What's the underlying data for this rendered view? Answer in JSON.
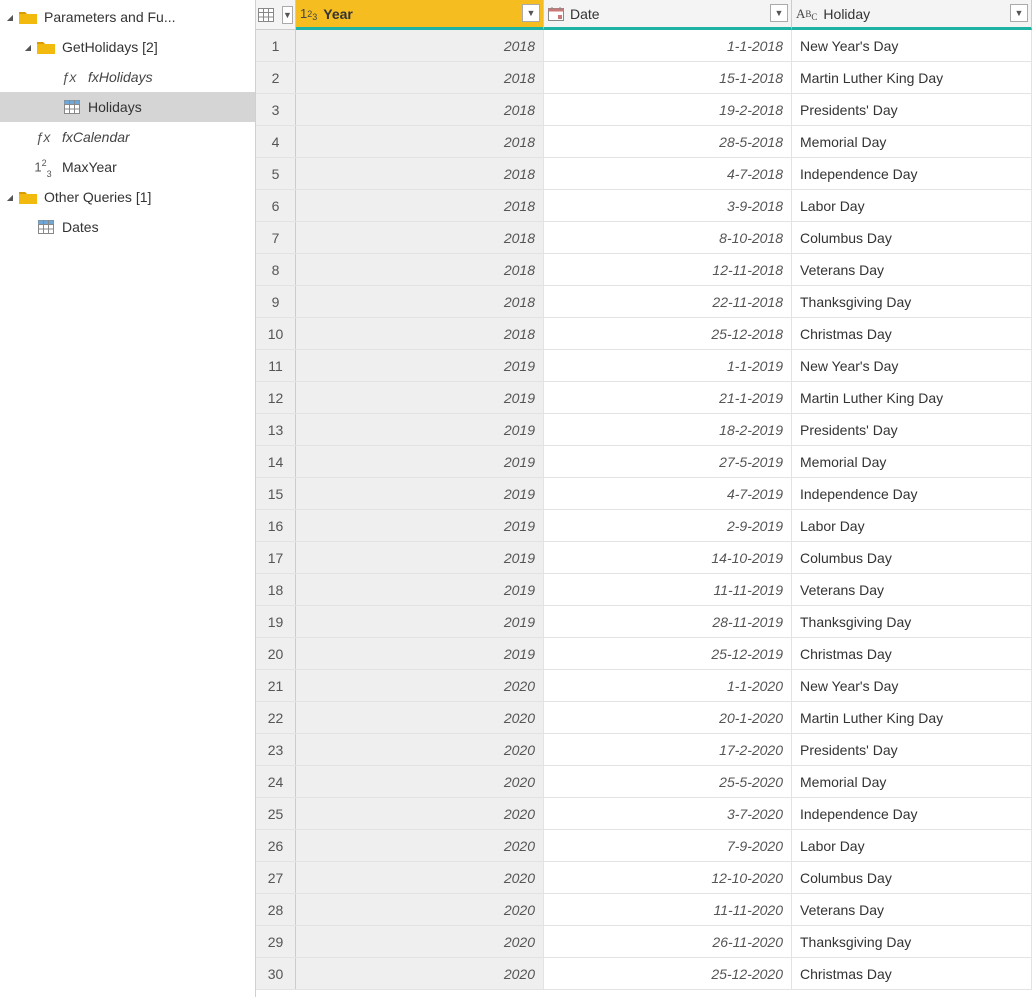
{
  "sidebar": {
    "items": [
      {
        "kind": "folder",
        "level": 0,
        "expanded": true,
        "label": "Parameters and Fu..."
      },
      {
        "kind": "folder",
        "level": 1,
        "expanded": true,
        "label": "GetHolidays [2]"
      },
      {
        "kind": "fx",
        "level": 2,
        "label": "fxHolidays"
      },
      {
        "kind": "table",
        "level": 2,
        "label": "Holidays",
        "selected": true
      },
      {
        "kind": "fx",
        "level": 1,
        "label": "fxCalendar"
      },
      {
        "kind": "number",
        "level": 1,
        "label": "MaxYear"
      },
      {
        "kind": "folder",
        "level": 0,
        "expanded": true,
        "label": "Other Queries [1]"
      },
      {
        "kind": "table",
        "level": 1,
        "label": "Dates"
      }
    ]
  },
  "grid": {
    "columns": [
      {
        "name": "Year",
        "type": "number",
        "selected": true
      },
      {
        "name": "Date",
        "type": "date",
        "selected": false
      },
      {
        "name": "Holiday",
        "type": "text",
        "selected": false
      }
    ],
    "rows": [
      {
        "n": "1",
        "year": "2018",
        "date": "1-1-2018",
        "holiday": "New Year's Day"
      },
      {
        "n": "2",
        "year": "2018",
        "date": "15-1-2018",
        "holiday": "Martin Luther King Day"
      },
      {
        "n": "3",
        "year": "2018",
        "date": "19-2-2018",
        "holiday": "Presidents' Day"
      },
      {
        "n": "4",
        "year": "2018",
        "date": "28-5-2018",
        "holiday": "Memorial Day"
      },
      {
        "n": "5",
        "year": "2018",
        "date": "4-7-2018",
        "holiday": "Independence Day"
      },
      {
        "n": "6",
        "year": "2018",
        "date": "3-9-2018",
        "holiday": "Labor Day"
      },
      {
        "n": "7",
        "year": "2018",
        "date": "8-10-2018",
        "holiday": "Columbus Day"
      },
      {
        "n": "8",
        "year": "2018",
        "date": "12-11-2018",
        "holiday": "Veterans Day"
      },
      {
        "n": "9",
        "year": "2018",
        "date": "22-11-2018",
        "holiday": "Thanksgiving Day"
      },
      {
        "n": "10",
        "year": "2018",
        "date": "25-12-2018",
        "holiday": "Christmas Day"
      },
      {
        "n": "11",
        "year": "2019",
        "date": "1-1-2019",
        "holiday": "New Year's Day"
      },
      {
        "n": "12",
        "year": "2019",
        "date": "21-1-2019",
        "holiday": "Martin Luther King Day"
      },
      {
        "n": "13",
        "year": "2019",
        "date": "18-2-2019",
        "holiday": "Presidents' Day"
      },
      {
        "n": "14",
        "year": "2019",
        "date": "27-5-2019",
        "holiday": "Memorial Day"
      },
      {
        "n": "15",
        "year": "2019",
        "date": "4-7-2019",
        "holiday": "Independence Day"
      },
      {
        "n": "16",
        "year": "2019",
        "date": "2-9-2019",
        "holiday": "Labor Day"
      },
      {
        "n": "17",
        "year": "2019",
        "date": "14-10-2019",
        "holiday": "Columbus Day"
      },
      {
        "n": "18",
        "year": "2019",
        "date": "11-11-2019",
        "holiday": "Veterans Day"
      },
      {
        "n": "19",
        "year": "2019",
        "date": "28-11-2019",
        "holiday": "Thanksgiving Day"
      },
      {
        "n": "20",
        "year": "2019",
        "date": "25-12-2019",
        "holiday": "Christmas Day"
      },
      {
        "n": "21",
        "year": "2020",
        "date": "1-1-2020",
        "holiday": "New Year's Day"
      },
      {
        "n": "22",
        "year": "2020",
        "date": "20-1-2020",
        "holiday": "Martin Luther King Day"
      },
      {
        "n": "23",
        "year": "2020",
        "date": "17-2-2020",
        "holiday": "Presidents' Day"
      },
      {
        "n": "24",
        "year": "2020",
        "date": "25-5-2020",
        "holiday": "Memorial Day"
      },
      {
        "n": "25",
        "year": "2020",
        "date": "3-7-2020",
        "holiday": "Independence Day"
      },
      {
        "n": "26",
        "year": "2020",
        "date": "7-9-2020",
        "holiday": "Labor Day"
      },
      {
        "n": "27",
        "year": "2020",
        "date": "12-10-2020",
        "holiday": "Columbus Day"
      },
      {
        "n": "28",
        "year": "2020",
        "date": "11-11-2020",
        "holiday": "Veterans Day"
      },
      {
        "n": "29",
        "year": "2020",
        "date": "26-11-2020",
        "holiday": "Thanksgiving Day"
      },
      {
        "n": "30",
        "year": "2020",
        "date": "25-12-2020",
        "holiday": "Christmas Day"
      }
    ]
  },
  "colors": {
    "selected_col_bg": "#f5bd1f",
    "teal_underline": "#1db2a3",
    "folder": "#f2b90f",
    "row_selected_bg": "#d5d5d5"
  }
}
